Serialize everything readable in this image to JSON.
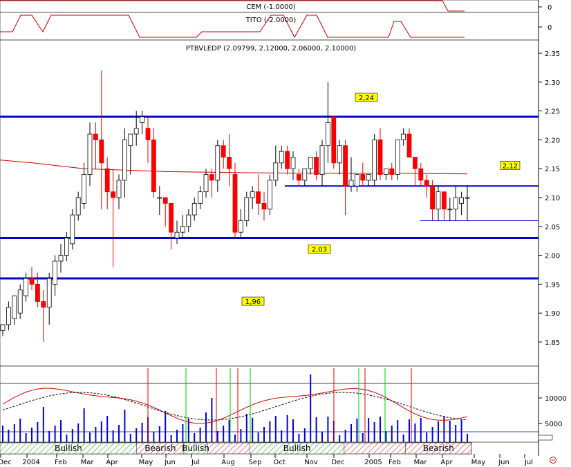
{
  "panels": {
    "cem": {
      "label": "CEM (-1.0000)",
      "axis_value": "0"
    },
    "tito": {
      "label": "TITO (-2.0000)",
      "axis_value": "0"
    },
    "price": {
      "title": "PTBVLEDP (2.09799, 2.12000, 2.06000, 2.10000)"
    }
  },
  "chart_data": {
    "type": "candlestick",
    "symbol": "PTBVLEDP",
    "yticks": [
      "2.35",
      "2.30",
      "2.25",
      "2.20",
      "2.15",
      "2.10",
      "2.05",
      "2.00",
      "1.95",
      "1.90",
      "1.85"
    ],
    "ylim": [
      1.815,
      2.375
    ],
    "xticks": [
      "Dec",
      "2004",
      "Feb",
      "Mar",
      "Apr",
      "May",
      "Jun",
      "Jul",
      "Aug",
      "Sep",
      "Oct",
      "Nov",
      "Dec",
      "2005",
      "Feb",
      "Mar",
      "Apr",
      "May",
      "Jun",
      "Jul"
    ],
    "levels": [
      {
        "value": 2.24,
        "label": "2,24"
      },
      {
        "value": 2.03,
        "label": "2,03"
      },
      {
        "value": 1.96,
        "label": "1,96"
      }
    ],
    "support_line": {
      "value": 2.06
    },
    "resistance_line": {
      "value": 2.12,
      "label": "2,12"
    },
    "moving_average": [
      [
        0,
        2.165
      ],
      [
        15,
        2.16
      ],
      [
        40,
        2.15
      ],
      [
        80,
        2.145
      ],
      [
        120,
        2.143
      ],
      [
        160,
        2.142
      ],
      [
        200,
        2.142
      ],
      [
        228,
        2.141
      ]
    ],
    "candles": [
      [
        1.87,
        1.88,
        1.86,
        1.88
      ],
      [
        1.88,
        1.92,
        1.87,
        1.91
      ],
      [
        1.89,
        1.93,
        1.88,
        1.93
      ],
      [
        1.9,
        1.95,
        1.89,
        1.94
      ],
      [
        1.93,
        1.97,
        1.92,
        1.96
      ],
      [
        1.96,
        1.98,
        1.94,
        1.95
      ],
      [
        1.95,
        1.97,
        1.91,
        1.92
      ],
      [
        1.92,
        1.94,
        1.85,
        1.91
      ],
      [
        1.91,
        1.97,
        1.88,
        1.96
      ],
      [
        1.95,
        2.0,
        1.93,
        1.99
      ],
      [
        1.99,
        2.02,
        1.97,
        2.0
      ],
      [
        2.0,
        2.04,
        1.99,
        2.03
      ],
      [
        2.02,
        2.08,
        2.01,
        2.07
      ],
      [
        2.07,
        2.11,
        2.06,
        2.1
      ],
      [
        2.09,
        2.16,
        2.08,
        2.14
      ],
      [
        2.14,
        2.23,
        2.12,
        2.21
      ],
      [
        2.21,
        2.23,
        2.15,
        2.2
      ],
      [
        2.2,
        2.32,
        2.08,
        2.16
      ],
      [
        2.15,
        2.17,
        2.08,
        2.11
      ],
      [
        2.11,
        2.15,
        1.98,
        2.1
      ],
      [
        2.1,
        2.14,
        2.08,
        2.13
      ],
      [
        2.13,
        2.22,
        2.1,
        2.2
      ],
      [
        2.19,
        2.21,
        2.14,
        2.21
      ],
      [
        2.21,
        2.25,
        2.19,
        2.22
      ],
      [
        2.23,
        2.25,
        2.21,
        2.24
      ],
      [
        2.22,
        2.24,
        2.16,
        2.2
      ],
      [
        2.2,
        2.22,
        2.1,
        2.11
      ],
      [
        2.1,
        2.12,
        2.07,
        2.1
      ],
      [
        2.1,
        2.1,
        2.05,
        2.09
      ],
      [
        2.09,
        2.09,
        2.01,
        2.04
      ],
      [
        2.03,
        2.06,
        2.02,
        2.04
      ],
      [
        2.04,
        2.07,
        2.03,
        2.05
      ],
      [
        2.05,
        2.08,
        2.04,
        2.07
      ],
      [
        2.07,
        2.1,
        2.06,
        2.09
      ],
      [
        2.09,
        2.12,
        2.08,
        2.11
      ],
      [
        2.11,
        2.15,
        2.1,
        2.14
      ],
      [
        2.14,
        2.15,
        2.1,
        2.13
      ],
      [
        2.13,
        2.2,
        2.11,
        2.19
      ],
      [
        2.19,
        2.2,
        2.15,
        2.17
      ],
      [
        2.17,
        2.21,
        2.12,
        2.15
      ],
      [
        2.14,
        2.16,
        2.03,
        2.04
      ],
      [
        2.04,
        2.08,
        2.03,
        2.06
      ],
      [
        2.06,
        2.11,
        2.05,
        2.1
      ],
      [
        2.1,
        2.12,
        2.08,
        2.11
      ],
      [
        2.11,
        2.14,
        2.07,
        2.09
      ],
      [
        2.09,
        2.11,
        2.06,
        2.08
      ],
      [
        2.08,
        2.14,
        2.07,
        2.13
      ],
      [
        2.13,
        2.19,
        2.12,
        2.16
      ],
      [
        2.16,
        2.19,
        2.15,
        2.18
      ],
      [
        2.18,
        2.19,
        2.14,
        2.15
      ],
      [
        2.15,
        2.18,
        2.13,
        2.17
      ],
      [
        2.14,
        2.15,
        2.12,
        2.13
      ],
      [
        2.13,
        2.15,
        2.12,
        2.15
      ],
      [
        2.15,
        2.17,
        2.14,
        2.17
      ],
      [
        2.17,
        2.18,
        2.13,
        2.14
      ],
      [
        2.14,
        2.2,
        2.12,
        2.19
      ],
      [
        2.19,
        2.3,
        2.16,
        2.23
      ],
      [
        2.24,
        2.24,
        2.15,
        2.16
      ],
      [
        2.16,
        2.2,
        2.14,
        2.19
      ],
      [
        2.19,
        2.2,
        2.07,
        2.12
      ],
      [
        2.12,
        2.17,
        2.11,
        2.13
      ],
      [
        2.12,
        2.14,
        2.11,
        2.14
      ],
      [
        2.14,
        2.16,
        2.12,
        2.13
      ],
      [
        2.13,
        2.14,
        2.12,
        2.14
      ],
      [
        2.13,
        2.21,
        2.12,
        2.2
      ],
      [
        2.2,
        2.22,
        2.13,
        2.14
      ],
      [
        2.14,
        2.15,
        2.13,
        2.15
      ],
      [
        2.15,
        2.16,
        2.13,
        2.14
      ],
      [
        2.14,
        2.2,
        2.13,
        2.2
      ],
      [
        2.2,
        2.22,
        2.19,
        2.21
      ],
      [
        2.21,
        2.22,
        2.17,
        2.17
      ],
      [
        2.17,
        2.17,
        2.12,
        2.15
      ],
      [
        2.15,
        2.16,
        2.12,
        2.13
      ],
      [
        2.13,
        2.14,
        2.1,
        2.12
      ],
      [
        2.12,
        2.13,
        2.06,
        2.08
      ],
      [
        2.08,
        2.12,
        2.06,
        2.11
      ],
      [
        2.11,
        2.11,
        2.06,
        2.08
      ],
      [
        2.08,
        2.1,
        2.06,
        2.08
      ],
      [
        2.08,
        2.12,
        2.06,
        2.1
      ],
      [
        2.09,
        2.11,
        2.07,
        2.1
      ],
      [
        2.1,
        2.12,
        2.06,
        2.1
      ]
    ],
    "volume_ticks": [
      "10000",
      "5000"
    ],
    "regimes": [
      {
        "label": "Bullish",
        "start": 0.0,
        "end": 0.29
      },
      {
        "label": "Bearish",
        "start": 0.29,
        "end": 0.39
      },
      {
        "label": "Bullish",
        "start": 0.39,
        "end": 0.44
      },
      {
        "label": "Bullish",
        "start": 0.53,
        "end": 0.73
      },
      {
        "label": "Bearish",
        "start": 0.86,
        "end": 1.0
      }
    ]
  }
}
